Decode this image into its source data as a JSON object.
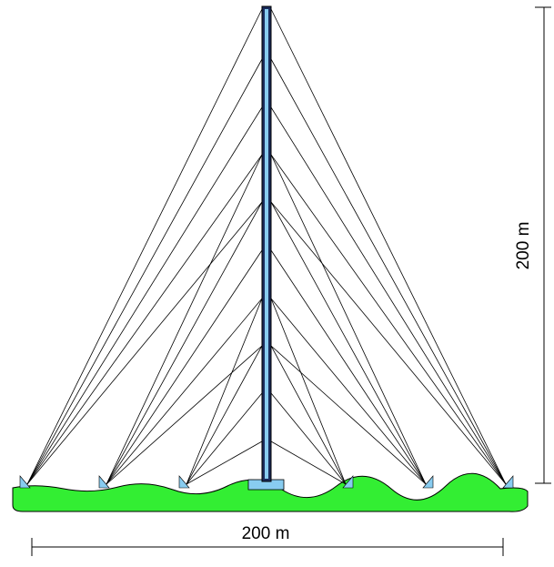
{
  "dimensions": {
    "height_label": "200 m",
    "width_label": "200 m"
  }
}
